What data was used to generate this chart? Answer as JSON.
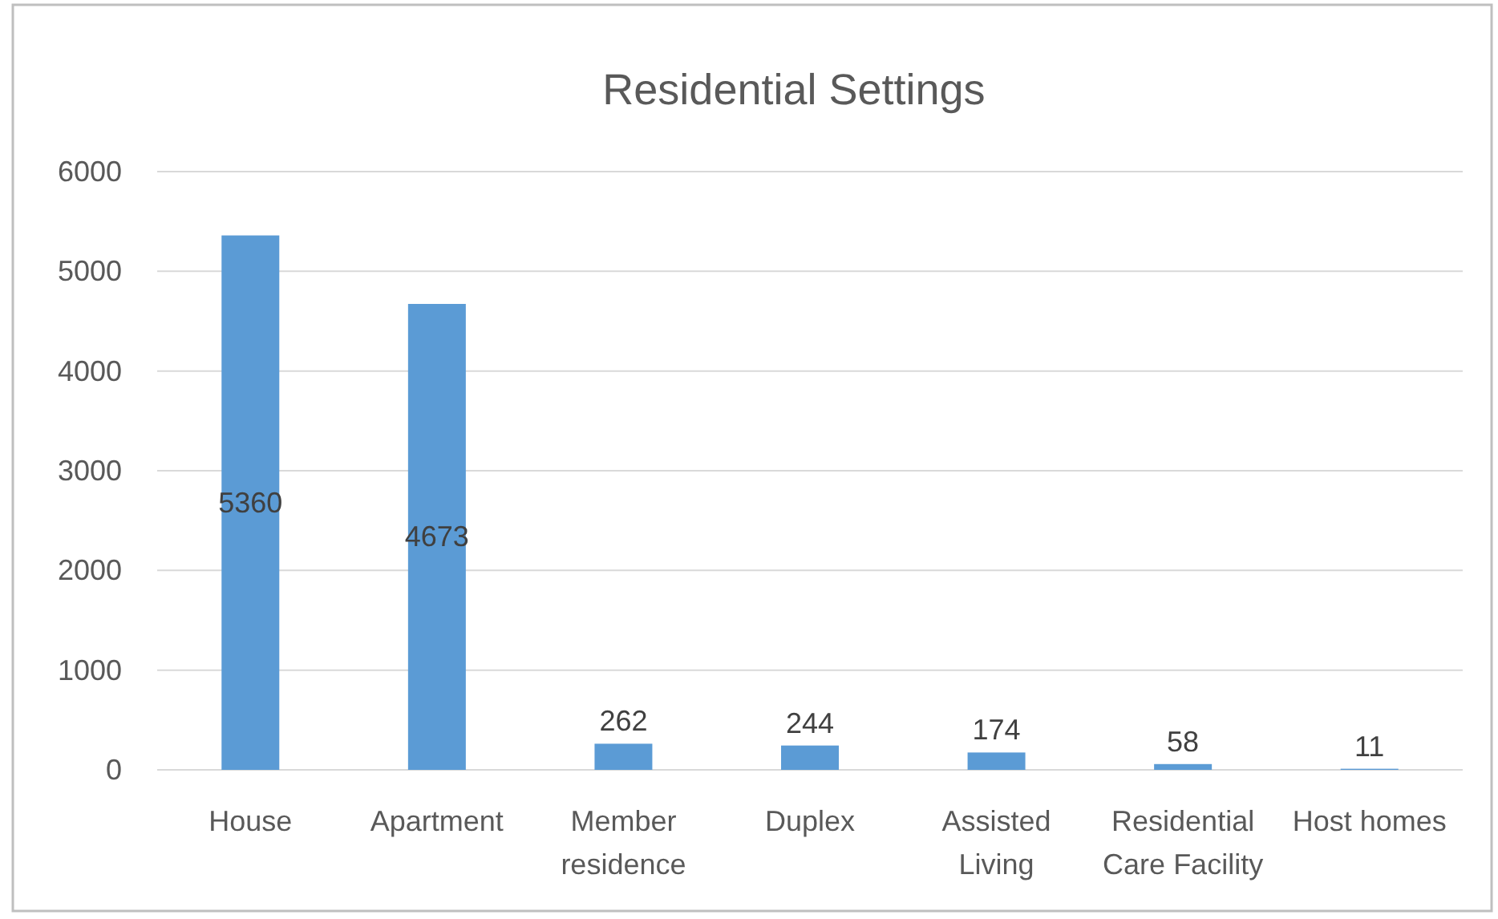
{
  "chart_data": {
    "type": "bar",
    "title": "Residential Settings",
    "categories": [
      "House",
      "Apartment",
      "Member residence",
      "Duplex",
      "Assisted Living",
      "Residential Care Facility",
      "Host homes"
    ],
    "values": [
      5360,
      4673,
      262,
      244,
      174,
      58,
      11
    ],
    "color": "#5b9bd5",
    "ylim": [
      0,
      6000
    ],
    "yticks": [
      0,
      1000,
      2000,
      3000,
      4000,
      5000,
      6000
    ],
    "grid": "y",
    "data_labels": true
  }
}
